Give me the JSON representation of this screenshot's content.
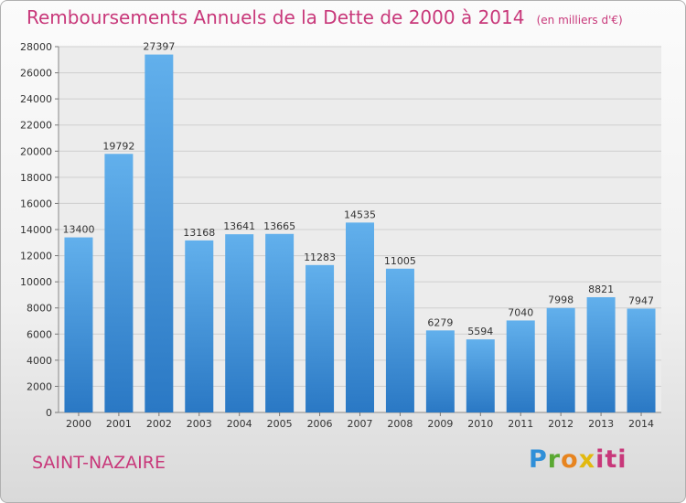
{
  "chart_data": {
    "type": "bar",
    "title": "Remboursements Annuels de la Dette de 2000 à 2014",
    "unit_note": "(en milliers d'€)",
    "categories": [
      "2000",
      "2001",
      "2002",
      "2003",
      "2004",
      "2005",
      "2006",
      "2007",
      "2008",
      "2009",
      "2010",
      "2011",
      "2012",
      "2013",
      "2014"
    ],
    "values": [
      13400,
      19792,
      27397,
      13168,
      13641,
      13665,
      11283,
      14535,
      11005,
      6279,
      5594,
      7040,
      7998,
      8821,
      7947
    ],
    "ylim": [
      0,
      28000
    ],
    "yticks": [
      0,
      2000,
      4000,
      6000,
      8000,
      10000,
      12000,
      14000,
      16000,
      18000,
      20000,
      22000,
      24000,
      26000,
      28000
    ],
    "grid": true,
    "bar_color": "#4a9be0"
  },
  "footer": {
    "city": "SAINT-NAZAIRE",
    "logo": [
      "P",
      "r",
      "o",
      "x",
      "iti"
    ]
  }
}
